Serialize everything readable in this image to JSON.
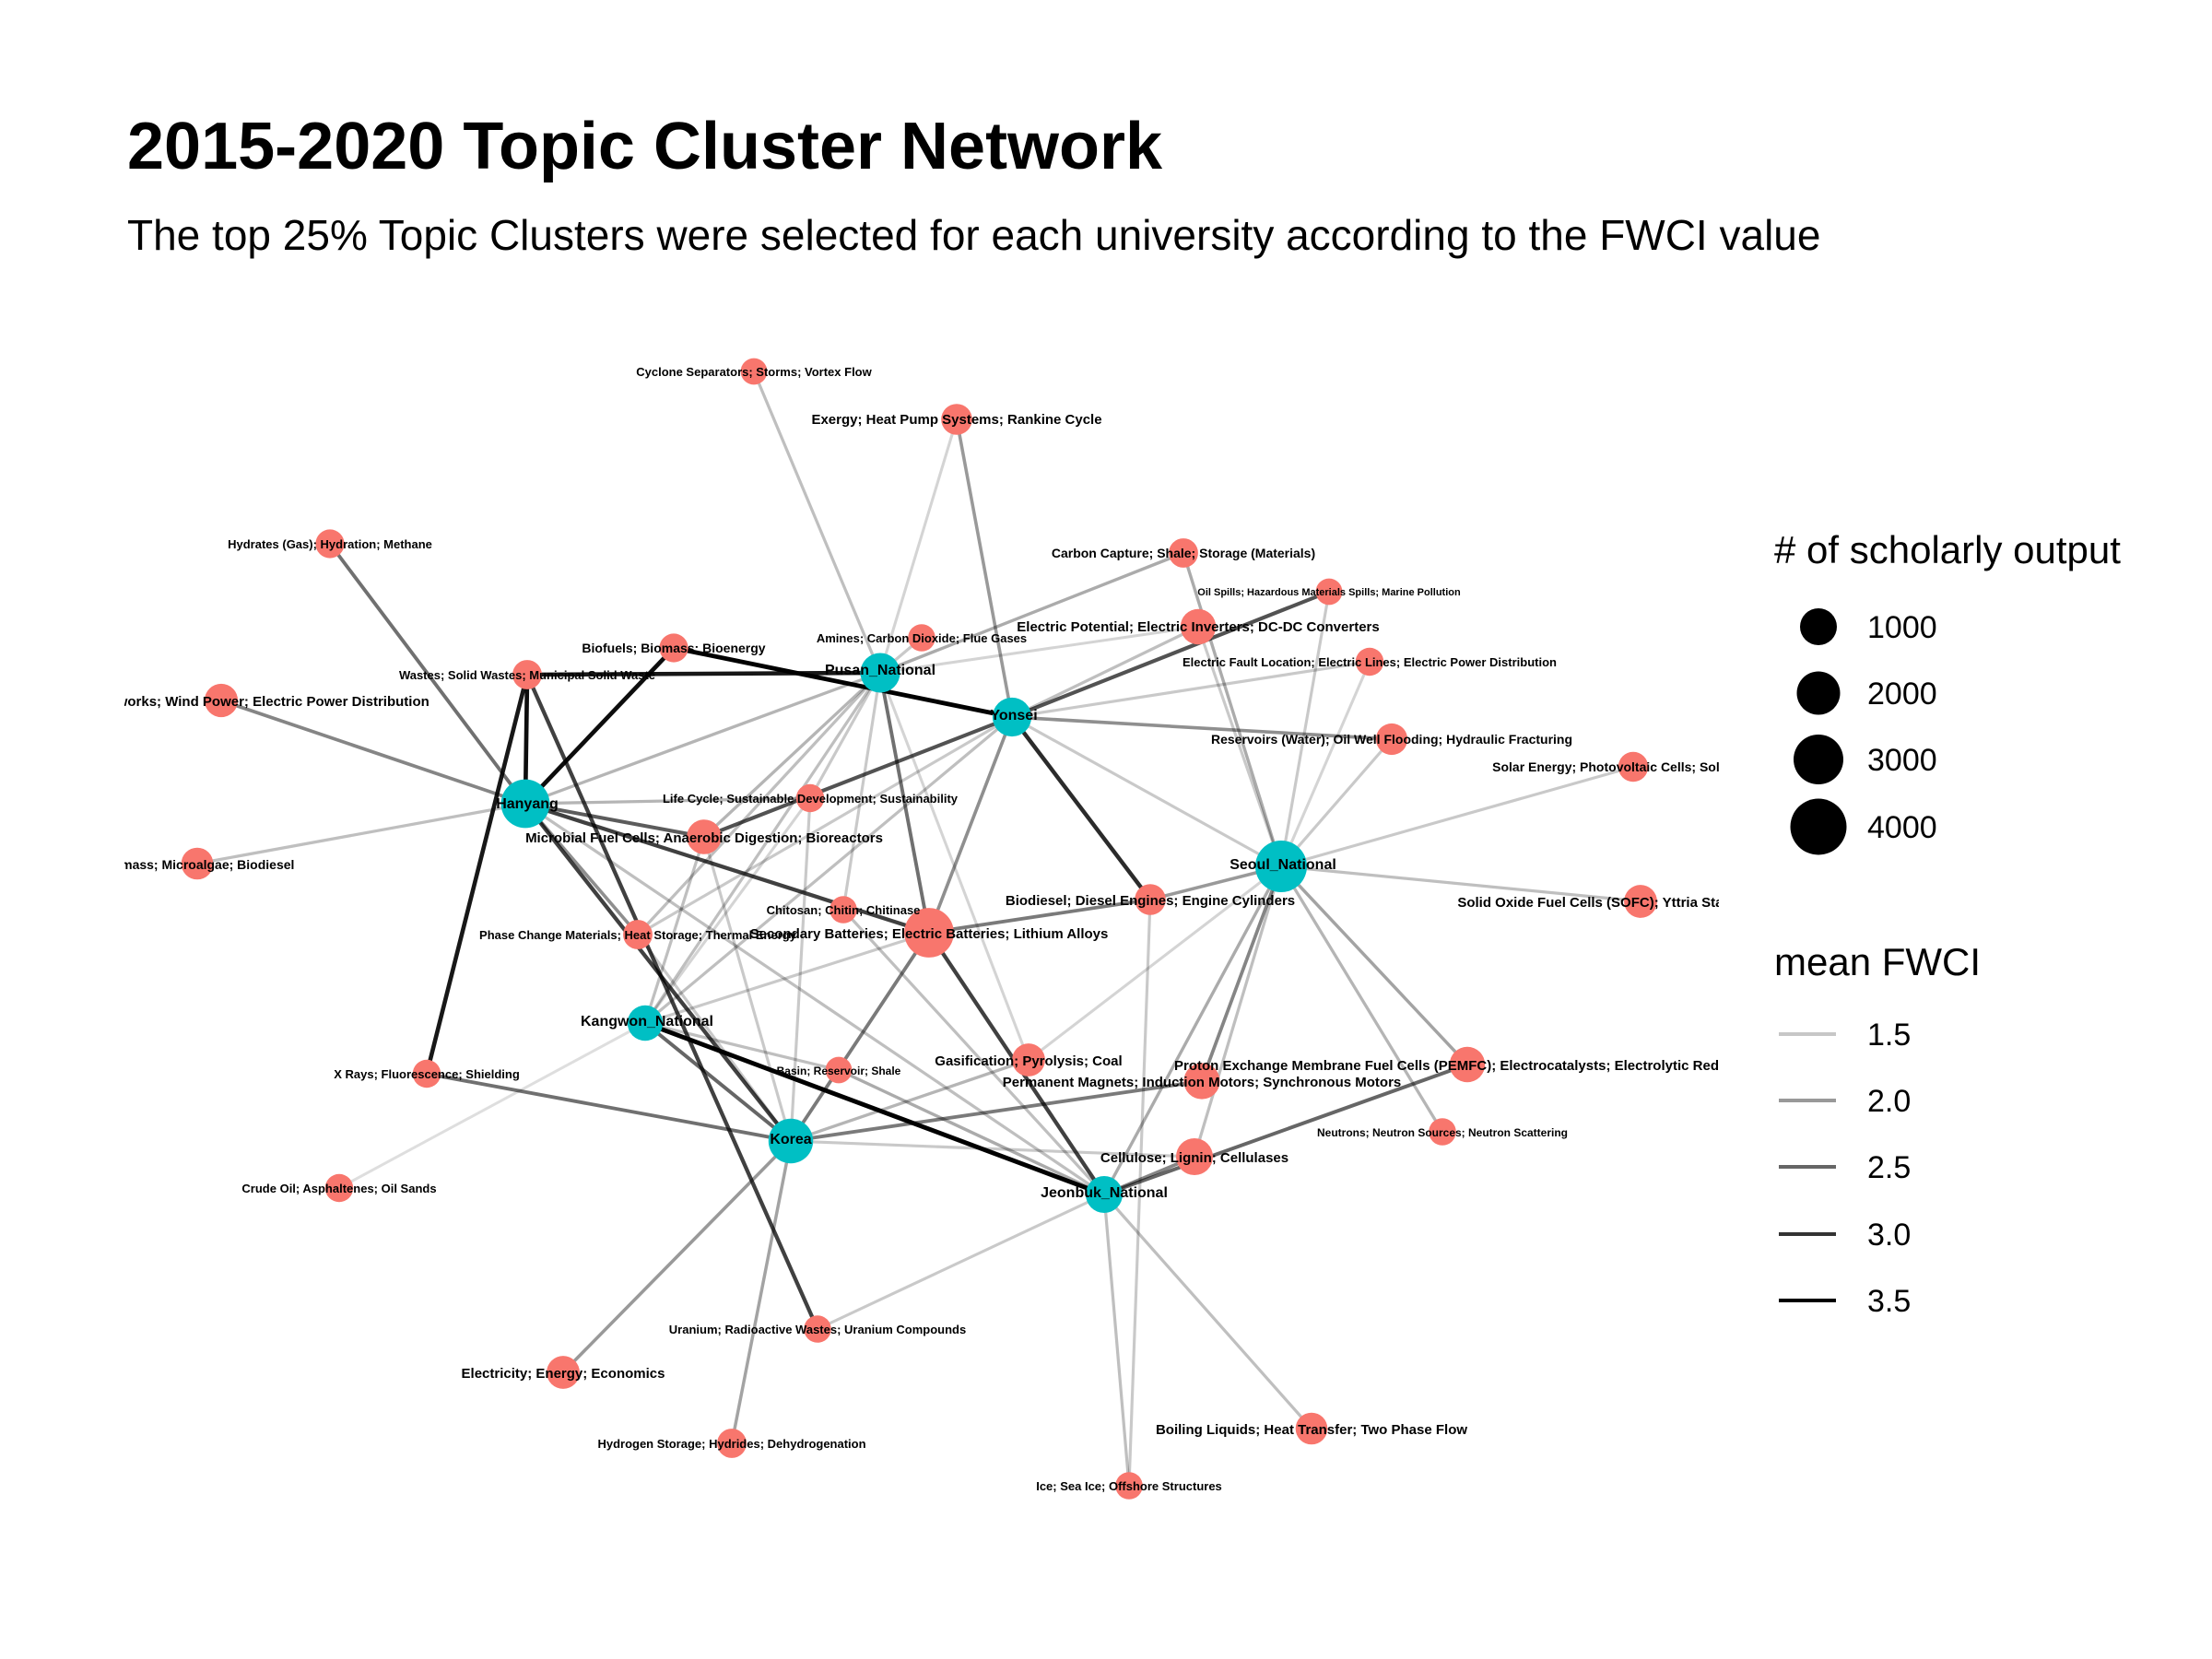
{
  "title": "2015-2020 Topic Cluster Network",
  "subtitle": "The top 25% Topic Clusters were selected for each university according to the FWCI value",
  "colors": {
    "university": "#00BFC4",
    "topic": "#F8766D",
    "edge": "#000000",
    "background": "#FFFFFF"
  },
  "legend_size": {
    "title": "# of scholarly output",
    "items": [
      {
        "label": "1000",
        "value": 1000
      },
      {
        "label": "2000",
        "value": 2000
      },
      {
        "label": "3000",
        "value": 3000
      },
      {
        "label": "4000",
        "value": 4000
      }
    ]
  },
  "legend_fwci": {
    "title": "mean FWCI",
    "items": [
      {
        "label": "1.5",
        "value": 1.5
      },
      {
        "label": "2.0",
        "value": 2.0
      },
      {
        "label": "2.5",
        "value": 2.5
      },
      {
        "label": "3.0",
        "value": 3.0
      },
      {
        "label": "3.5",
        "value": 3.5
      }
    ]
  },
  "nodes": [
    {
      "id": "hanyang",
      "label": "Hanyang",
      "group": "university",
      "output": 3500
    },
    {
      "id": "pusan",
      "label": "Pusan_National",
      "group": "university",
      "output": 1700
    },
    {
      "id": "yonsei",
      "label": "Yonsei",
      "group": "university",
      "output": 1600
    },
    {
      "id": "seoul",
      "label": "Seoul_National",
      "group": "university",
      "output": 4200
    },
    {
      "id": "kangwon",
      "label": "Kangwon_National",
      "group": "university",
      "output": 1100
    },
    {
      "id": "korea",
      "label": "Korea",
      "group": "university",
      "output": 2600
    },
    {
      "id": "jeonbuk",
      "label": "Jeonbuk_National",
      "group": "university",
      "output": 1300
    },
    {
      "id": "cyclone",
      "label": "Cyclone Separators; Storms; Vortex Flow",
      "group": "topic",
      "output": 250
    },
    {
      "id": "exergy",
      "label": "Exergy; Heat Pump Systems; Rankine Cycle",
      "group": "topic",
      "output": 600
    },
    {
      "id": "hydrates",
      "label": "Hydrates (Gas); Hydration; Methane",
      "group": "topic",
      "output": 400
    },
    {
      "id": "carboncap",
      "label": "Carbon Capture; Shale; Storage (Materials)",
      "group": "topic",
      "output": 450
    },
    {
      "id": "oilspills",
      "label": "Oil Spills; Hazardous Materials Spills; Marine Pollution",
      "group": "topic",
      "output": 250
    },
    {
      "id": "amines",
      "label": "Amines; Carbon Dioxide; Flue Gases",
      "group": "topic",
      "output": 300
    },
    {
      "id": "elecpot",
      "label": "Electric Potential; Electric Inverters; DC-DC Converters",
      "group": "topic",
      "output": 1100
    },
    {
      "id": "biofuels",
      "label": "Biofuels; Biomass; Bioenergy",
      "group": "topic",
      "output": 400
    },
    {
      "id": "wastes",
      "label": "Wastes; Solid Wastes; Municipal Solid Waste",
      "group": "topic",
      "output": 450
    },
    {
      "id": "faultloc",
      "label": "Electric Fault Location; Electric Lines; Electric Power Distribution",
      "group": "topic",
      "output": 350
    },
    {
      "id": "windpower",
      "label": "Distribution Networks; Wind Power; Electric Power Distribution",
      "group": "topic",
      "output": 850
    },
    {
      "id": "reservoirs",
      "label": "Reservoirs (Water); Oil Well Flooding; Hydraulic Fracturing",
      "group": "topic",
      "output": 650
    },
    {
      "id": "solar",
      "label": "Solar Energy; Photovoltaic Cells; Solar Power",
      "group": "topic",
      "output": 500
    },
    {
      "id": "lifecycle",
      "label": "Life Cycle; Sustainable Development; Sustainability",
      "group": "topic",
      "output": 350
    },
    {
      "id": "microbial",
      "label": "Microbial Fuel Cells; Anaerobic Digestion; Bioreactors",
      "group": "topic",
      "output": 1000
    },
    {
      "id": "microalgae",
      "label": "Biomass; Microalgae; Biodiesel",
      "group": "topic",
      "output": 700
    },
    {
      "id": "sofc",
      "label": "Solid Oxide Fuel Cells (SOFC); Yttria Stabilized Zirconia",
      "group": "topic",
      "output": 800
    },
    {
      "id": "biodiesel",
      "label": "Biodiesel; Diesel Engines; Engine Cylinders",
      "group": "topic",
      "output": 600
    },
    {
      "id": "chitosan",
      "label": "Chitosan; Chitin; Chitinase",
      "group": "topic",
      "output": 300
    },
    {
      "id": "batteries",
      "label": "Secondary Batteries; Electric Batteries; Lithium Alloys",
      "group": "topic",
      "output": 3700
    },
    {
      "id": "pcm",
      "label": "Phase Change Materials; Heat Storage; Thermal Energy",
      "group": "topic",
      "output": 450
    },
    {
      "id": "gasification",
      "label": "Gasification; Pyrolysis; Coal",
      "group": "topic",
      "output": 800
    },
    {
      "id": "pemfc",
      "label": "Proton Exchange Membrane Fuel Cells (PEMFC); Electrocatalysts; Electrolytic Reduction",
      "group": "topic",
      "output": 1100
    },
    {
      "id": "magnets",
      "label": "Permanent Magnets; Induction Motors; Synchronous Motors",
      "group": "topic",
      "output": 1200
    },
    {
      "id": "basin",
      "label": "Basin; Reservoir; Shale",
      "group": "topic",
      "output": 250
    },
    {
      "id": "xrays",
      "label": "X Rays; Fluorescence; Shielding",
      "group": "topic",
      "output": 350
    },
    {
      "id": "neutrons",
      "label": "Neutrons; Neutron Sources; Neutron Scattering",
      "group": "topic",
      "output": 300
    },
    {
      "id": "cellulose",
      "label": "Cellulose; Lignin; Cellulases",
      "group": "topic",
      "output": 1300
    },
    {
      "id": "crudeoil",
      "label": "Crude Oil; Asphaltenes; Oil Sands",
      "group": "topic",
      "output": 350
    },
    {
      "id": "uranium",
      "label": "Uranium; Radioactive Wastes; Uranium Compounds",
      "group": "topic",
      "output": 300
    },
    {
      "id": "electricity",
      "label": "Electricity; Energy; Economics",
      "group": "topic",
      "output": 800
    },
    {
      "id": "boiling",
      "label": "Boiling Liquids; Heat Transfer; Two Phase Flow",
      "group": "topic",
      "output": 700
    },
    {
      "id": "hydrogen",
      "label": "Hydrogen Storage; Hydrides; Dehydrogenation",
      "group": "topic",
      "output": 450
    },
    {
      "id": "ice",
      "label": "Ice; Sea Ice; Offshore Structures",
      "group": "topic",
      "output": 300
    }
  ],
  "edges": [
    {
      "from": "pusan",
      "to": "cyclone",
      "fwci": 1.5
    },
    {
      "from": "yonsei",
      "to": "exergy",
      "fwci": 1.9
    },
    {
      "from": "pusan",
      "to": "exergy",
      "fwci": 1.3
    },
    {
      "from": "hanyang",
      "to": "hydrates",
      "fwci": 2.3
    },
    {
      "from": "hanyang",
      "to": "windpower",
      "fwci": 2.1
    },
    {
      "from": "hanyang",
      "to": "microalgae",
      "fwci": 1.5
    },
    {
      "from": "hanyang",
      "to": "wastes",
      "fwci": 3.3
    },
    {
      "from": "hanyang",
      "to": "biofuels",
      "fwci": 3.3
    },
    {
      "from": "hanyang",
      "to": "pusan",
      "fwci": 1.6
    },
    {
      "from": "hanyang",
      "to": "microbial",
      "fwci": 2.5
    },
    {
      "from": "hanyang",
      "to": "batteries",
      "fwci": 2.8
    },
    {
      "from": "hanyang",
      "to": "pcm",
      "fwci": 2.0
    },
    {
      "from": "hanyang",
      "to": "korea",
      "fwci": 2.8
    },
    {
      "from": "hanyang",
      "to": "lifecycle",
      "fwci": 1.6
    },
    {
      "from": "pusan",
      "to": "wastes",
      "fwci": 3.2
    },
    {
      "from": "pusan",
      "to": "amines",
      "fwci": 1.4
    },
    {
      "from": "pusan",
      "to": "carboncap",
      "fwci": 1.7
    },
    {
      "from": "pusan",
      "to": "elecpot",
      "fwci": 1.3
    },
    {
      "from": "pusan",
      "to": "lifecycle",
      "fwci": 1.4
    },
    {
      "from": "pusan",
      "to": "microbial",
      "fwci": 1.6
    },
    {
      "from": "pusan",
      "to": "batteries",
      "fwci": 2.3
    },
    {
      "from": "pusan",
      "to": "chitosan",
      "fwci": 1.4
    },
    {
      "from": "pusan",
      "to": "pcm",
      "fwci": 1.5
    },
    {
      "from": "pusan",
      "to": "kangwon",
      "fwci": 1.5
    },
    {
      "from": "pusan",
      "to": "gasification",
      "fwci": 1.3
    },
    {
      "from": "biofuels",
      "to": "yonsei",
      "fwci": 3.5
    },
    {
      "from": "yonsei",
      "to": "oilspills",
      "fwci": 2.6
    },
    {
      "from": "yonsei",
      "to": "elecpot",
      "fwci": 1.5
    },
    {
      "from": "yonsei",
      "to": "faultloc",
      "fwci": 1.4
    },
    {
      "from": "yonsei",
      "to": "reservoirs",
      "fwci": 2.0
    },
    {
      "from": "yonsei",
      "to": "biodiesel",
      "fwci": 3.0
    },
    {
      "from": "yonsei",
      "to": "microbial",
      "fwci": 2.6
    },
    {
      "from": "yonsei",
      "to": "batteries",
      "fwci": 2.0
    },
    {
      "from": "yonsei",
      "to": "seoul",
      "fwci": 1.4
    },
    {
      "from": "yonsei",
      "to": "pcm",
      "fwci": 1.4
    },
    {
      "from": "yonsei",
      "to": "kangwon",
      "fwci": 1.5
    },
    {
      "from": "seoul",
      "to": "carboncap",
      "fwci": 1.7
    },
    {
      "from": "seoul",
      "to": "oilspills",
      "fwci": 1.4
    },
    {
      "from": "seoul",
      "to": "elecpot",
      "fwci": 1.4
    },
    {
      "from": "seoul",
      "to": "faultloc",
      "fwci": 1.3
    },
    {
      "from": "seoul",
      "to": "reservoirs",
      "fwci": 1.4
    },
    {
      "from": "seoul",
      "to": "solar",
      "fwci": 1.4
    },
    {
      "from": "seoul",
      "to": "sofc",
      "fwci": 1.5
    },
    {
      "from": "seoul",
      "to": "biodiesel",
      "fwci": 1.9
    },
    {
      "from": "seoul",
      "to": "magnets",
      "fwci": 2.1
    },
    {
      "from": "seoul",
      "to": "pemfc",
      "fwci": 1.8
    },
    {
      "from": "seoul",
      "to": "cellulose",
      "fwci": 1.5
    },
    {
      "from": "seoul",
      "to": "jeonbuk",
      "fwci": 1.7
    },
    {
      "from": "seoul",
      "to": "gasification",
      "fwci": 1.3
    },
    {
      "from": "seoul",
      "to": "neutrons",
      "fwci": 1.6
    },
    {
      "from": "biodiesel",
      "to": "batteries",
      "fwci": 2.2
    },
    {
      "from": "biodiesel",
      "to": "ice",
      "fwci": 1.4
    },
    {
      "from": "kangwon",
      "to": "microbial",
      "fwci": 1.5
    },
    {
      "from": "kangwon",
      "to": "lifecycle",
      "fwci": 1.3
    },
    {
      "from": "kangwon",
      "to": "korea",
      "fwci": 2.4
    },
    {
      "from": "kangwon",
      "to": "basin",
      "fwci": 1.5
    },
    {
      "from": "kangwon",
      "to": "jeonbuk",
      "fwci": 3.6
    },
    {
      "from": "kangwon",
      "to": "crudeoil",
      "fwci": 1.2
    },
    {
      "from": "kangwon",
      "to": "batteries",
      "fwci": 1.4
    },
    {
      "from": "xrays",
      "to": "wastes",
      "fwci": 3.2
    },
    {
      "from": "xrays",
      "to": "korea",
      "fwci": 2.3
    },
    {
      "from": "wastes",
      "to": "uranium",
      "fwci": 2.8
    },
    {
      "from": "korea",
      "to": "batteries",
      "fwci": 2.2
    },
    {
      "from": "korea",
      "to": "gasification",
      "fwci": 1.6
    },
    {
      "from": "korea",
      "to": "magnets",
      "fwci": 2.2
    },
    {
      "from": "korea",
      "to": "lifecycle",
      "fwci": 1.4
    },
    {
      "from": "korea",
      "to": "pcm",
      "fwci": 1.4
    },
    {
      "from": "korea",
      "to": "microbial",
      "fwci": 1.4
    },
    {
      "from": "korea",
      "to": "electricity",
      "fwci": 1.9
    },
    {
      "from": "korea",
      "to": "hydrogen",
      "fwci": 1.8
    },
    {
      "from": "korea",
      "to": "cellulose",
      "fwci": 1.4
    },
    {
      "from": "jeonbuk",
      "to": "batteries",
      "fwci": 2.8
    },
    {
      "from": "jeonbuk",
      "to": "chitosan",
      "fwci": 1.5
    },
    {
      "from": "jeonbuk",
      "to": "pemfc",
      "fwci": 2.4
    },
    {
      "from": "jeonbuk",
      "to": "cellulose",
      "fwci": 2.1
    },
    {
      "from": "jeonbuk",
      "to": "uranium",
      "fwci": 1.4
    },
    {
      "from": "jeonbuk",
      "to": "boiling",
      "fwci": 1.5
    },
    {
      "from": "jeonbuk",
      "to": "ice",
      "fwci": 1.5
    },
    {
      "from": "jeonbuk",
      "to": "basin",
      "fwci": 1.7
    },
    {
      "from": "jeonbuk",
      "to": "hanyang",
      "fwci": 1.5
    }
  ]
}
